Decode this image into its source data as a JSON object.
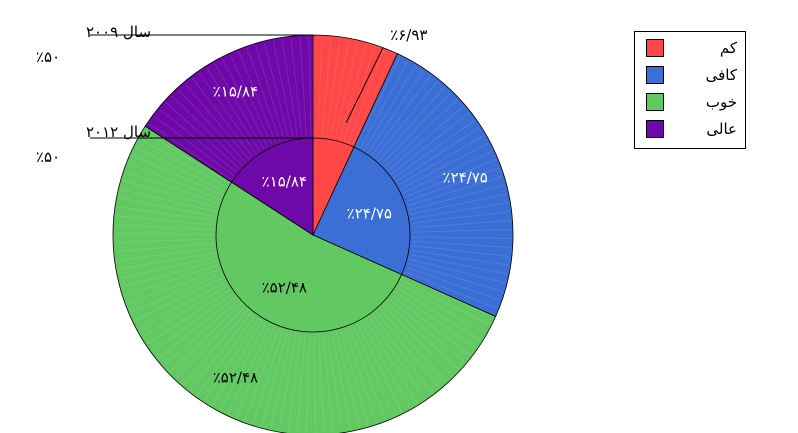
{
  "chart_data": {
    "type": "pie",
    "subtype": "nested-donut",
    "categories": [
      "کم",
      "کافی",
      "خوب",
      "عالی"
    ],
    "colors": [
      "#ff4747",
      "#3b6fd6",
      "#62c862",
      "#6f08a8"
    ],
    "series": [
      {
        "name": "سال ۲۰۰۹",
        "share": "٪۵۰",
        "values": [
          6.93,
          24.75,
          52.48,
          15.84
        ],
        "labels": [
          "٪۶/۹۳",
          "٪۲۴/۷۵",
          "٪۵۲/۴۸",
          "٪۱۵/۸۴"
        ]
      },
      {
        "name": "سال ۲۰۱۲",
        "share": "٪۵۰",
        "values": [
          6.93,
          24.75,
          52.48,
          15.84
        ],
        "labels": [
          "",
          "٪۲۴/۷۵",
          "٪۵۲/۴۸",
          "٪۱۵/۸۴"
        ]
      }
    ],
    "legend": {
      "position": "top-right"
    }
  }
}
